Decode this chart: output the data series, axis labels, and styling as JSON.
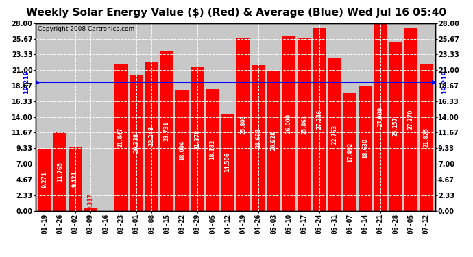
{
  "title": "Weekly Solar Energy Value ($) (Red) & Average (Blue) Wed Jul 16 05:40",
  "copyright": "Copyright 2008 Cartronics.com",
  "average": 19.219,
  "average_label": "19.219",
  "categories": [
    "01-19",
    "01-26",
    "02-02",
    "02-09",
    "02-16",
    "02-23",
    "03-01",
    "03-08",
    "03-15",
    "03-22",
    "03-29",
    "04-05",
    "04-12",
    "04-19",
    "04-26",
    "05-03",
    "05-10",
    "05-17",
    "05-24",
    "05-31",
    "06-07",
    "06-14",
    "06-21",
    "06-28",
    "07-05",
    "07-12"
  ],
  "values": [
    9.271,
    11.765,
    9.421,
    0.317,
    0.0,
    21.847,
    20.338,
    22.248,
    23.731,
    18.004,
    21.378,
    18.182,
    14.506,
    25.803,
    21.698,
    20.928,
    26.0,
    25.863,
    27.246,
    22.763,
    17.492,
    18.63,
    27.999,
    25.157,
    27.27,
    21.825
  ],
  "bar_color": "#ff0000",
  "line_color": "#0000ff",
  "bg_color": "#c8c8c8",
  "plot_bg_color": "#c8c8c8",
  "yticks_left": [
    0.0,
    2.33,
    4.67,
    7.0,
    9.33,
    11.67,
    14.0,
    16.33,
    18.67,
    21.0,
    23.33,
    25.67,
    28.0
  ],
  "ylim": [
    0,
    28.0
  ],
  "title_fontsize": 11,
  "bar_label_fontsize": 5.5,
  "tick_fontsize": 7,
  "copyright_fontsize": 6.5
}
